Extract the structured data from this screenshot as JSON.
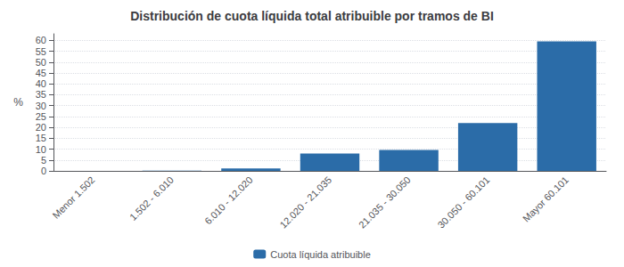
{
  "chart_data": {
    "type": "bar",
    "title": "Distribución de cuota líquida total atribuible por tramos de BI",
    "ylabel": "%",
    "categories": [
      "Menor 1.502",
      "1.502 - 6.010",
      "6.010 - 12.020",
      "12.020 - 21.035",
      "21.035 - 30.050",
      "30.050 - 60.101",
      "Mayor 60.101"
    ],
    "series": [
      {
        "name": "Cuota líquida atribuible",
        "color": "#2b6ca8",
        "values": [
          0.0,
          0.1,
          1.1,
          8.0,
          9.6,
          22.0,
          59.5
        ]
      }
    ],
    "ylim": [
      0,
      63
    ],
    "yticks": [
      0,
      5,
      10,
      15,
      20,
      25,
      30,
      35,
      40,
      45,
      50,
      55,
      60
    ],
    "grid": true,
    "legend": "bottom"
  }
}
